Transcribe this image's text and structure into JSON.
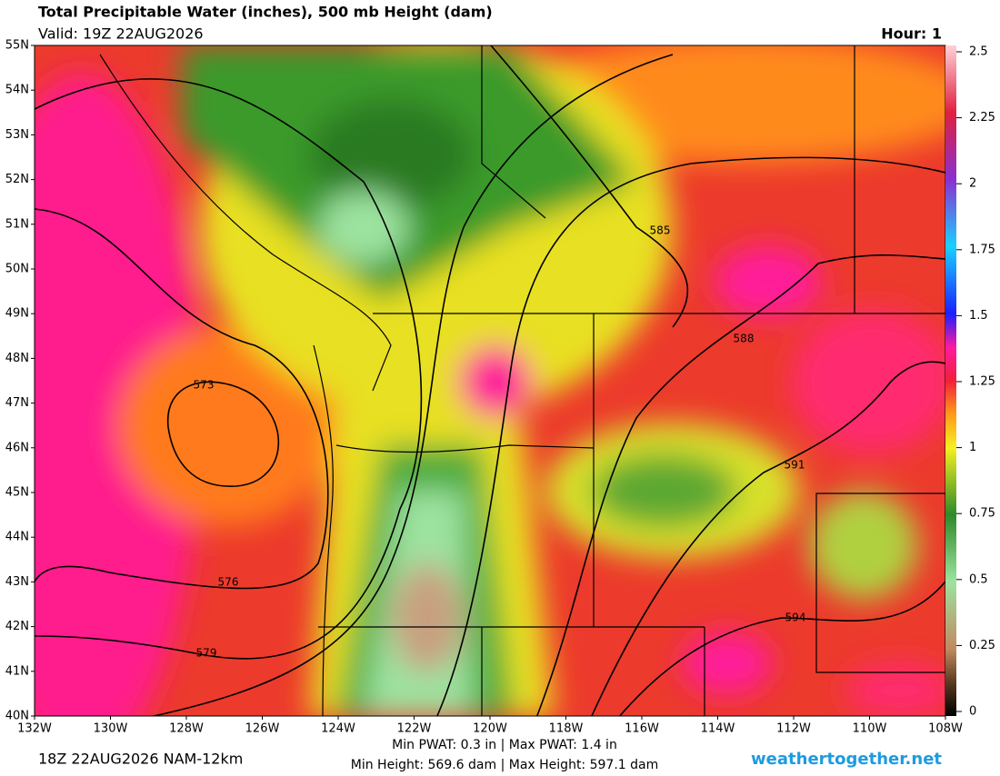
{
  "header": {
    "title": "Total Precipitable Water (inches), 500 mb Height (dam)",
    "valid": "Valid: 19Z 22AUG2026",
    "hour": "Hour: 1"
  },
  "lat_labels": [
    "55N",
    "54N",
    "53N",
    "52N",
    "51N",
    "50N",
    "49N",
    "48N",
    "47N",
    "46N",
    "45N",
    "44N",
    "43N",
    "42N",
    "41N",
    "40N"
  ],
  "lon_labels": [
    "132W",
    "130W",
    "128W",
    "126W",
    "124W",
    "122W",
    "120W",
    "118W",
    "116W",
    "114W",
    "112W",
    "110W",
    "108W"
  ],
  "colorbar": {
    "ticks": [
      0,
      0.25,
      0.5,
      0.75,
      1,
      1.25,
      1.5,
      1.75,
      2,
      2.25,
      2.5
    ]
  },
  "contour_labels": [
    "573",
    "576",
    "579",
    "585",
    "588",
    "591",
    "594"
  ],
  "footer": {
    "run": "18Z 22AUG2026 NAM-12km",
    "pwat": "Min PWAT:   0.3 in | Max PWAT:   1.4 in",
    "height": "Min Height: 569.6 dam | Max Height: 597.1 dam",
    "site": "weathertogether.net"
  }
}
